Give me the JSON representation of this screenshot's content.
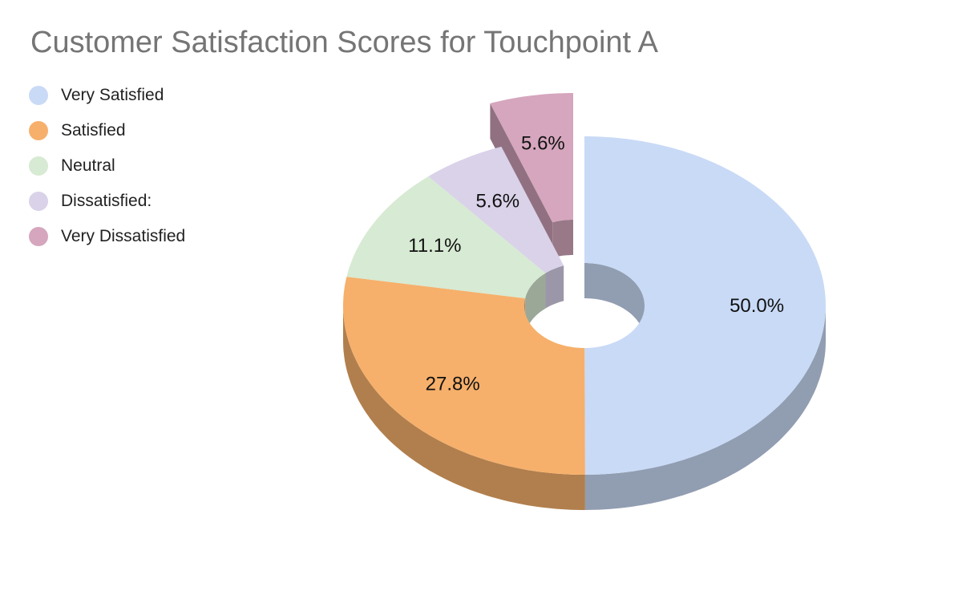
{
  "title": "Customer Satisfaction Scores for Touchpoint A",
  "chart_data": {
    "type": "pie",
    "title": "Customer Satisfaction Scores for Touchpoint A",
    "donut": true,
    "three_d": true,
    "legend_position": "top-left",
    "categories": [
      "Very Satisfied",
      "Satisfied",
      "Neutral",
      "Dissatisfied:",
      "Very Dissatisfied"
    ],
    "values": [
      50.0,
      27.8,
      11.1,
      5.6,
      5.6
    ],
    "labels": [
      "50.0%",
      "27.8%",
      "11.1%",
      "5.6%",
      "5.6%"
    ],
    "colors": [
      "#c9daf6",
      "#f6b06b",
      "#d7ead3",
      "#d9d2e9",
      "#d5a6bd"
    ],
    "exploded": [
      false,
      false,
      false,
      false,
      true
    ]
  }
}
